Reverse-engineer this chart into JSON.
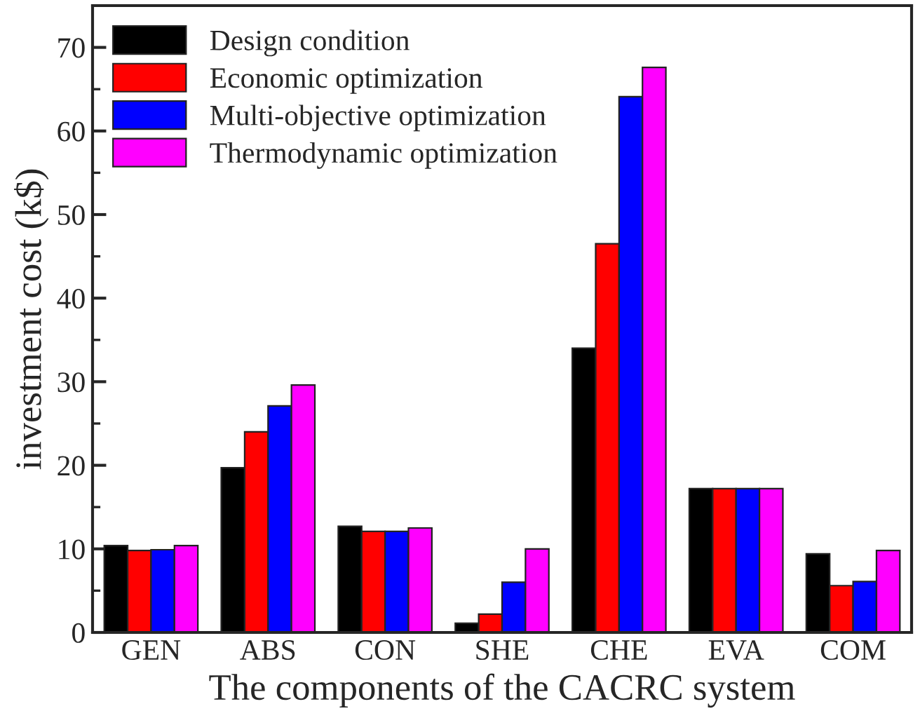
{
  "chart_data": {
    "type": "bar",
    "xlabel": "The components of the CACRC system",
    "ylabel": "investment cost (k$)",
    "categories": [
      "GEN",
      "ABS",
      "CON",
      "SHE",
      "CHE",
      "EVA",
      "COM"
    ],
    "series": [
      {
        "name": "Design condition",
        "color": "#000000",
        "values": [
          10.4,
          19.7,
          12.7,
          1.1,
          34.0,
          17.2,
          9.4
        ]
      },
      {
        "name": "Economic optimization",
        "color": "#ff0000",
        "values": [
          9.8,
          24.0,
          12.1,
          2.2,
          46.5,
          17.2,
          5.6
        ]
      },
      {
        "name": "Multi-objective optimization",
        "color": "#0000ff",
        "values": [
          9.9,
          27.1,
          12.1,
          6.0,
          64.1,
          17.2,
          6.1
        ]
      },
      {
        "name": "Thermodynamic optimization",
        "color": "#ff00ff",
        "values": [
          10.4,
          29.6,
          12.5,
          10.0,
          67.6,
          17.2,
          9.8
        ]
      }
    ],
    "ylim": [
      0,
      75
    ],
    "yticks": [
      0,
      10,
      20,
      30,
      40,
      50,
      60,
      70
    ],
    "grid": false,
    "legend": "top left"
  }
}
